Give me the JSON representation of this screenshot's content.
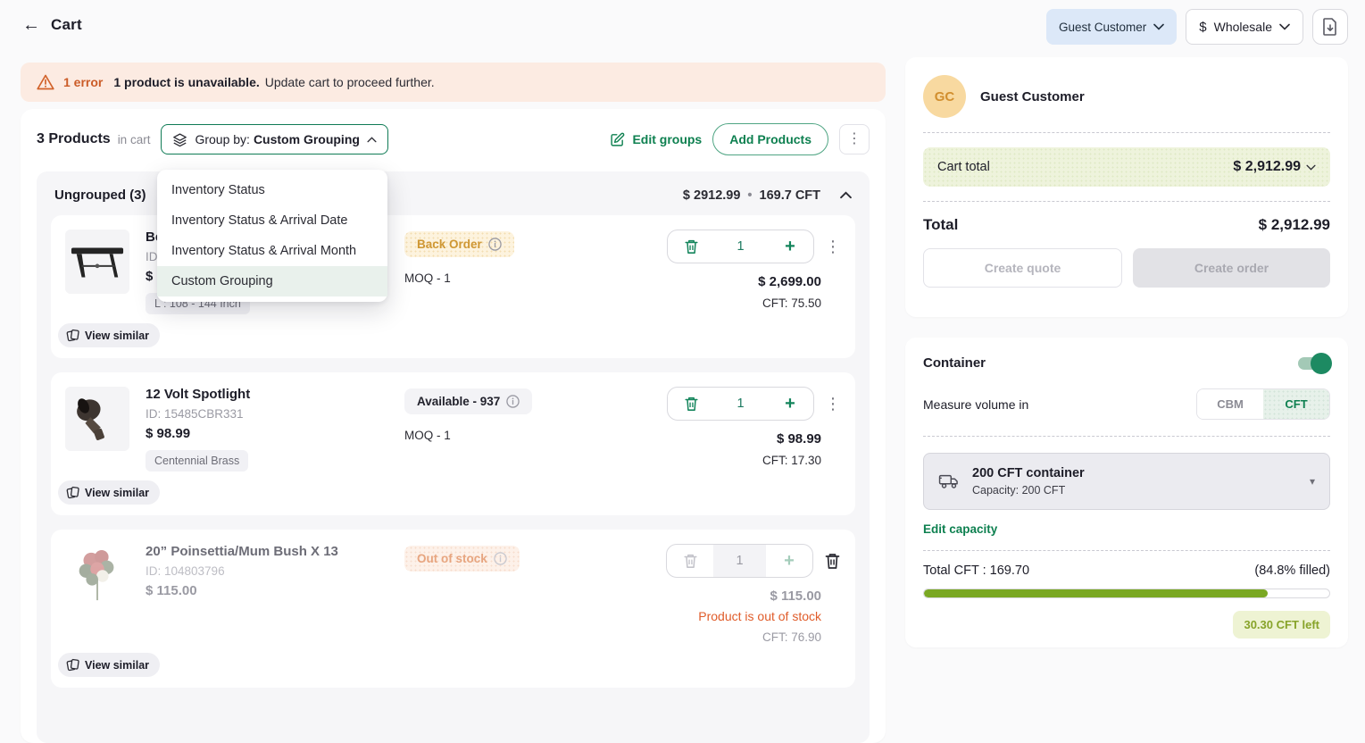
{
  "header": {
    "title": "Cart",
    "customer_selector": "Guest Customer",
    "currency_symbol": "$",
    "price_list_selector": "Wholesale"
  },
  "error_banner": {
    "error_count": "1 error",
    "message_bold": "1 product is unavailable.",
    "message_rest": "Update cart to proceed further."
  },
  "toolbar": {
    "products_count": "3 Products",
    "products_suffix": "in cart",
    "group_by_prefix": "Group by:",
    "group_by_value": "Custom Grouping",
    "edit_groups_label": "Edit groups",
    "add_products_label": "Add Products"
  },
  "group_by_menu": {
    "items": [
      "Inventory Status",
      "Inventory Status & Arrival Date",
      "Inventory Status & Arrival Month",
      "Custom Grouping"
    ],
    "selected": "Custom Grouping"
  },
  "group": {
    "title": "Ungrouped (3)",
    "total_price": "$ 2912.99",
    "separator": "•",
    "total_cft": "169.7 CFT"
  },
  "products": [
    {
      "title": "Be",
      "id": "ID",
      "price": "$ 2,699.00",
      "variant_tag": "L : 108 - 144 Inch",
      "stock_badge": "Back Order",
      "moq": "MOQ - 1",
      "quantity": "1",
      "line_total": "$ 2,699.00",
      "cft": "CFT: 75.50",
      "view_similar_label": "View similar"
    },
    {
      "title": "12 Volt Spotlight",
      "id": "ID: 15485CBR331",
      "price": "$ 98.99",
      "variant_tag": "Centennial Brass",
      "stock_badge": "Available - 937",
      "moq": "MOQ - 1",
      "quantity": "1",
      "line_total": "$ 98.99",
      "cft": "CFT: 17.30",
      "view_similar_label": "View similar"
    },
    {
      "title": "20” Poinsettia/Mum Bush X 13",
      "id": "ID: 104803796",
      "price": "$ 115.00",
      "stock_badge": "Out of stock",
      "quantity": "1",
      "line_total": "$ 115.00",
      "stock_note": "Product is out of stock",
      "cft": "CFT: 76.90",
      "view_similar_label": "View similar"
    }
  ],
  "sidebar": {
    "customer": {
      "initials": "GC",
      "name": "Guest Customer"
    },
    "cart_total_label": "Cart total",
    "cart_total_value": "$ 2,912.99",
    "total_label": "Total",
    "total_value": "$ 2,912.99",
    "create_quote_label": "Create quote",
    "create_order_label": "Create order",
    "container": {
      "title": "Container",
      "measure_label": "Measure volume in",
      "unit_cbm": "CBM",
      "unit_cft": "CFT",
      "selected_name": "200 CFT container",
      "selected_capacity": "Capacity: 200 CFT",
      "edit_capacity_label": "Edit capacity",
      "total_line": "Total CFT : 169.70",
      "filled_line": "(84.8% filled)",
      "progress_percent": 84.8,
      "left_badge": "30.30 CFT left"
    }
  },
  "colors": {
    "accent_green": "#0e8050",
    "progress_green": "#7aa823",
    "error_orange": "#d2622a",
    "warning_amber": "#cf9733"
  }
}
